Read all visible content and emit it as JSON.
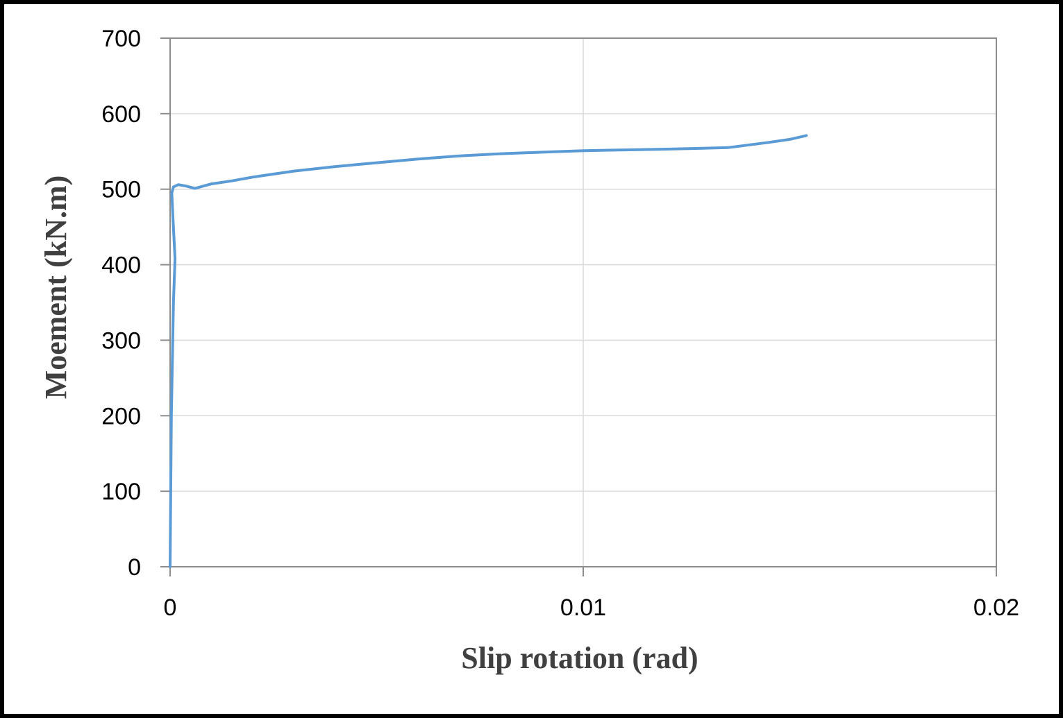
{
  "chart_data": {
    "type": "line",
    "title": "",
    "xlabel": "Slip rotation (rad)",
    "ylabel": "Moement (kN.m)",
    "xlim": [
      0,
      0.02
    ],
    "ylim": [
      0,
      700
    ],
    "x_ticks": [
      0,
      0.01,
      0.02
    ],
    "x_tick_labels": [
      "0",
      "0.01",
      "0.02"
    ],
    "y_ticks": [
      0,
      100,
      200,
      300,
      400,
      500,
      600,
      700
    ],
    "y_tick_labels": [
      "0",
      "100",
      "200",
      "300",
      "400",
      "500",
      "600",
      "700"
    ],
    "grid": true,
    "legend": "none",
    "series": [
      {
        "color": "#5B9BD5",
        "x": [
          0,
          3e-05,
          8e-05,
          0.00012,
          7e-05,
          4e-05,
          8e-05,
          0.0002,
          0.0004,
          0.0006,
          0.001,
          0.0015,
          0.002,
          0.003,
          0.004,
          0.005,
          0.006,
          0.007,
          0.008,
          0.009,
          0.01,
          0.011,
          0.012,
          0.0135,
          0.0145,
          0.015,
          0.0154
        ],
        "y": [
          0,
          200,
          350,
          408,
          460,
          495,
          503,
          506,
          504,
          501,
          507,
          511,
          516,
          524,
          530,
          535,
          540,
          544,
          547,
          549,
          551,
          552,
          553,
          555,
          562,
          566,
          571
        ]
      }
    ]
  }
}
